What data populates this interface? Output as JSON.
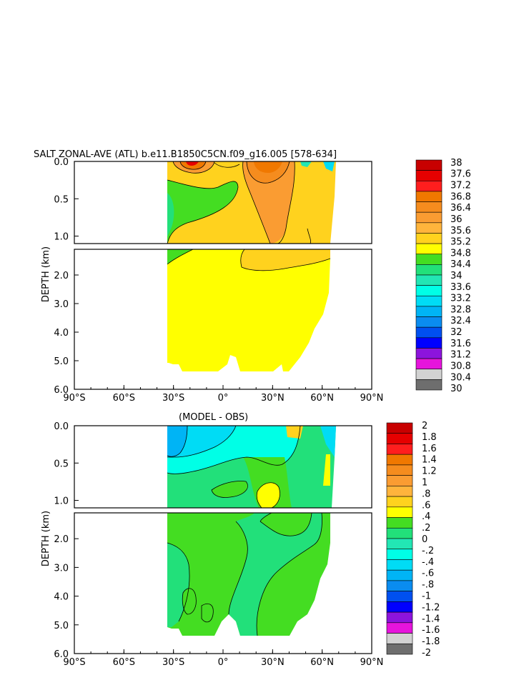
{
  "chart_data": [
    {
      "type": "heatmap",
      "title": "SALT ZONAL-AVE (ATL) b.e11.B1850C5CN.f09_g16.005 [578-634]",
      "ylabel": "DEPTH (km)",
      "xlabel": "",
      "x_ticks": [
        "90°S",
        "60°S",
        "30°S",
        "0°",
        "30°N",
        "60°N",
        "90°N"
      ],
      "x_range": [
        -90,
        90
      ],
      "y_ticks_upper": [
        "0.0",
        "0.5",
        "1.0"
      ],
      "y_ticks_lower": [
        "2.0",
        "3.0",
        "4.0",
        "5.0",
        "6.0"
      ],
      "y_range_km": [
        0,
        6
      ],
      "colorbar_levels": [
        "38",
        "37.6",
        "37.2",
        "36.8",
        "36.4",
        "36",
        "35.6",
        "35.2",
        "34.8",
        "34.4",
        "34",
        "33.6",
        "33.2",
        "32.8",
        "32.4",
        "32",
        "31.6",
        "31.2",
        "30.8",
        "30.4",
        "30"
      ],
      "colorbar_colors": [
        "#c80000",
        "#e60000",
        "#ff1e1e",
        "#f07800",
        "#f58c1e",
        "#fa9c32",
        "#ffb43c",
        "#ffd21e",
        "#ffff00",
        "#44dd22",
        "#22e07a",
        "#22e6b4",
        "#00ffe6",
        "#00dcf5",
        "#00b4f5",
        "#0a8cf0",
        "#0050f0",
        "#0000ff",
        "#8c14dc",
        "#e614dc",
        "#d2d2d2",
        "#6e6e6e"
      ],
      "region_values": {
        "dominant_deep": 35.0,
        "upper_midlat_max": 37.0,
        "south_intermediate_min": 34.6
      }
    },
    {
      "type": "heatmap",
      "title": "(MODEL - OBS)",
      "ylabel": "DEPTH (km)",
      "xlabel": "",
      "x_ticks": [
        "90°S",
        "60°S",
        "30°S",
        "0°",
        "30°N",
        "60°N",
        "90°N"
      ],
      "x_range": [
        -90,
        90
      ],
      "y_ticks_upper": [
        "0.0",
        "0.5",
        "1.0"
      ],
      "y_ticks_lower": [
        "2.0",
        "3.0",
        "4.0",
        "5.0",
        "6.0"
      ],
      "y_range_km": [
        0,
        6
      ],
      "colorbar_levels": [
        "2",
        "1.8",
        "1.6",
        "1.4",
        "1.2",
        "1",
        ".8",
        ".6",
        ".4",
        ".2",
        "0",
        "-.2",
        "-.4",
        "-.6",
        "-.8",
        "-1",
        "-1.2",
        "-1.4",
        "-1.6",
        "-1.8",
        "-2"
      ],
      "colorbar_colors": [
        "#c80000",
        "#e60000",
        "#ff1e1e",
        "#f07800",
        "#f58c1e",
        "#fa9c32",
        "#ffb43c",
        "#ffd21e",
        "#ffff00",
        "#44dd22",
        "#22e07a",
        "#22e6b4",
        "#00ffe6",
        "#00dcf5",
        "#00b4f5",
        "#0a8cf0",
        "#0050f0",
        "#0000ff",
        "#8c14dc",
        "#e614dc",
        "#d2d2d2",
        "#6e6e6e"
      ],
      "region_values": {
        "dominant_deep": 0.1,
        "surface_south_min": -0.7,
        "subsurface_max": 0.5
      }
    }
  ]
}
